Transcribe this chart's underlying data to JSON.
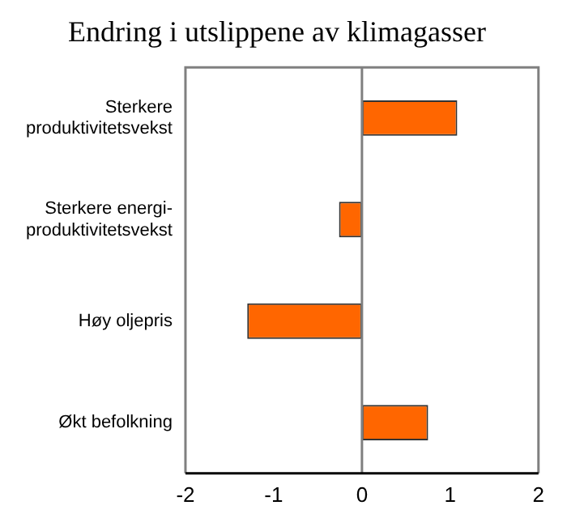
{
  "chart_data": {
    "type": "bar",
    "orientation": "horizontal",
    "title": "Endring i utslippene av klimagasser",
    "categories": [
      "Sterkere\nproduktivitetsvekst",
      "Sterkere energi-\nproduktivitetsvekst",
      "Høy oljepris",
      "Økt befolkning"
    ],
    "values": [
      1.08,
      -0.26,
      -1.3,
      0.75
    ],
    "color": "#ff6600",
    "xlim": [
      -2,
      2
    ],
    "xticks": [
      -2,
      -1,
      0,
      1,
      2
    ],
    "grid": false,
    "legend": false,
    "ref_lines": [
      {
        "axis": "x",
        "value": 0,
        "color": "#808080"
      }
    ]
  }
}
